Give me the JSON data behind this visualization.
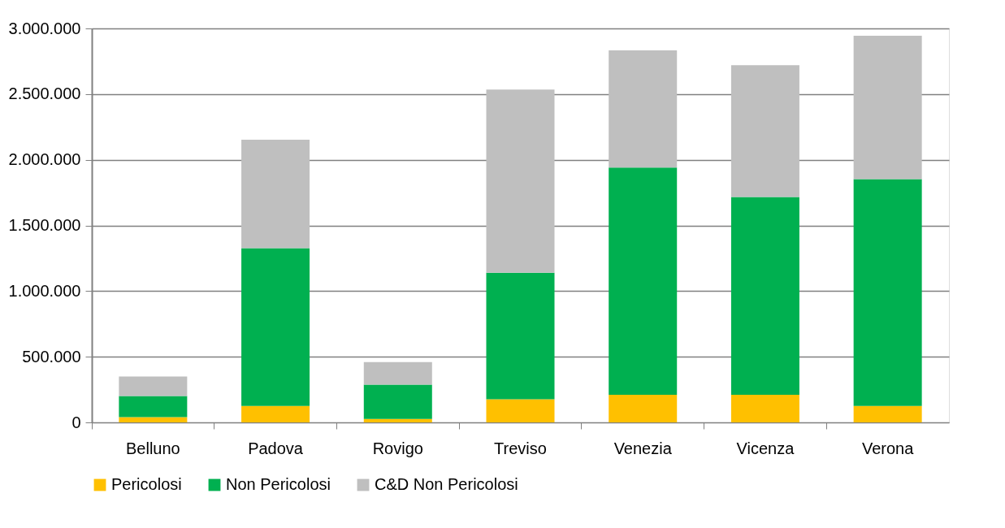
{
  "chart_data": {
    "type": "bar",
    "stacked": true,
    "categories": [
      "Belluno",
      "Padova",
      "Rovigo",
      "Treviso",
      "Venezia",
      "Vicenza",
      "Verona"
    ],
    "series": [
      {
        "name": "Pericolosi",
        "color": "#ffc000",
        "values": [
          40000,
          126000,
          26000,
          177000,
          210000,
          210000,
          126000
        ]
      },
      {
        "name": "Non Pericolosi",
        "color": "#00b050",
        "values": [
          161000,
          1201000,
          261000,
          962000,
          1731000,
          1506000,
          1726000
        ]
      },
      {
        "name": "C&D Non Pericolosi",
        "color": "#bfbfbf",
        "values": [
          148000,
          825000,
          172000,
          1395000,
          892000,
          1004000,
          1092000
        ]
      }
    ],
    "ylim": [
      0,
      3000000
    ],
    "yticks": [
      {
        "value": 0,
        "label": "0"
      },
      {
        "value": 500000,
        "label": "500.000"
      },
      {
        "value": 1000000,
        "label": "1.000.000"
      },
      {
        "value": 1500000,
        "label": "1.500.000"
      },
      {
        "value": 2000000,
        "label": "2.000.000"
      },
      {
        "value": 2500000,
        "label": "2.500.000"
      },
      {
        "value": 3000000,
        "label": "3.000.000"
      }
    ],
    "grid": "y",
    "legend": "bottom"
  }
}
